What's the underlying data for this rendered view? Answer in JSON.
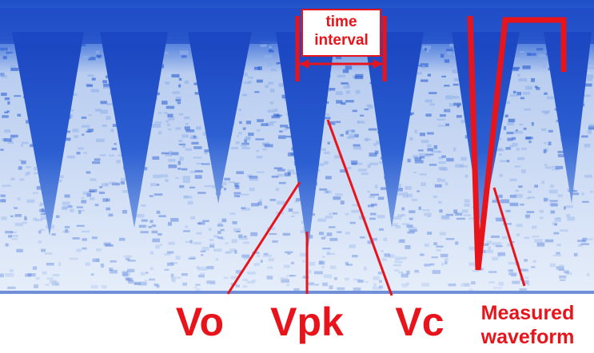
{
  "annotations": {
    "time_interval": [
      "time",
      "interval"
    ],
    "vo": "Vo",
    "vpk": "Vpk",
    "vc": "Vc",
    "measured_waveform": [
      "Measured",
      "waveform"
    ]
  }
}
